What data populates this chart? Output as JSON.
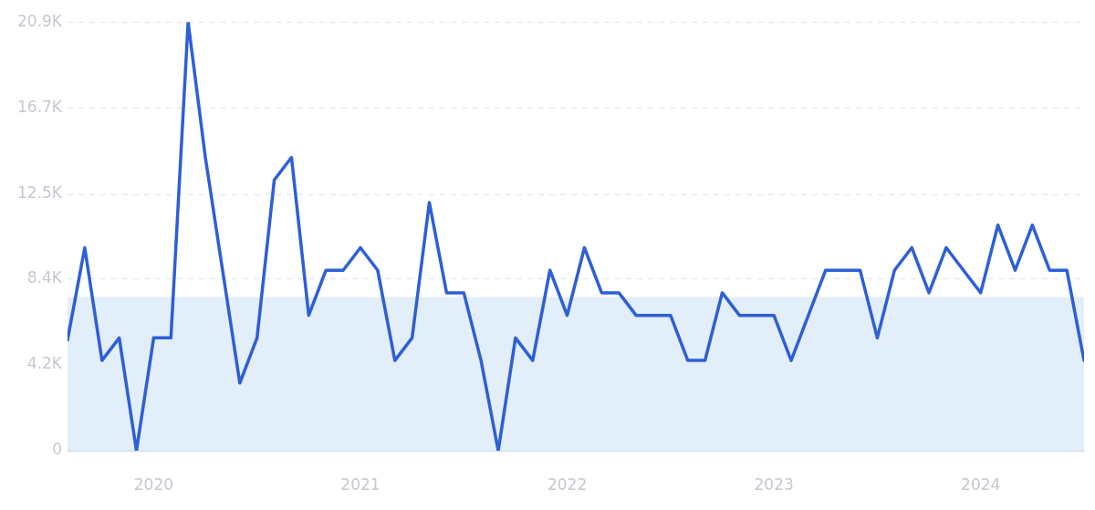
{
  "chart_data": {
    "type": "line",
    "x": [
      "2019-08",
      "2019-09",
      "2019-10",
      "2019-11",
      "2019-12",
      "2020-01",
      "2020-02",
      "2020-03",
      "2020-04",
      "2020-05",
      "2020-06",
      "2020-07",
      "2020-08",
      "2020-09",
      "2020-10",
      "2020-11",
      "2020-12",
      "2021-01",
      "2021-02",
      "2021-03",
      "2021-04",
      "2021-05",
      "2021-06",
      "2021-07",
      "2021-08",
      "2021-09",
      "2021-10",
      "2021-11",
      "2021-12",
      "2022-01",
      "2022-02",
      "2022-03",
      "2022-04",
      "2022-05",
      "2022-06",
      "2022-07",
      "2022-08",
      "2022-09",
      "2022-10",
      "2022-11",
      "2022-12",
      "2023-01",
      "2023-02",
      "2023-03",
      "2023-04",
      "2023-05",
      "2023-06",
      "2023-07",
      "2023-08",
      "2023-09",
      "2023-10",
      "2023-11",
      "2023-12",
      "2024-01",
      "2024-02",
      "2024-03",
      "2024-04",
      "2024-05",
      "2024-06",
      "2024-07"
    ],
    "series": [
      {
        "color": "#2d5fd6",
        "values": [
          5400,
          9900,
          4400,
          5500,
          0,
          5500,
          5500,
          20900,
          14300,
          8800,
          3300,
          5500,
          13200,
          14300,
          6600,
          8800,
          8800,
          9900,
          8800,
          4400,
          5500,
          12100,
          7700,
          7700,
          4400,
          0,
          5500,
          4400,
          8800,
          6600,
          9900,
          7700,
          7700,
          6600,
          6600,
          6600,
          4400,
          4400,
          7700,
          6600,
          6600,
          6600,
          4400,
          6600,
          8800,
          8800,
          8800,
          5500,
          8800,
          9900,
          7700,
          9900,
          8800,
          7700,
          11000,
          8800,
          11000,
          8800,
          8800,
          4400
        ]
      }
    ],
    "xlim": [
      "2019-08",
      "2024-07"
    ],
    "xticks": [
      {
        "value": "2020-01",
        "label": "2020"
      },
      {
        "value": "2021-01",
        "label": "2021"
      },
      {
        "value": "2022-01",
        "label": "2022"
      },
      {
        "value": "2023-01",
        "label": "2023"
      },
      {
        "value": "2024-01",
        "label": "2024"
      }
    ],
    "ylim": [
      0,
      20900
    ],
    "yticks": [
      0,
      {
        "value": 4200,
        "label": "4.2K"
      },
      {
        "value": 8400,
        "label": "8.4K"
      },
      {
        "value": 12500,
        "label": "12.5K"
      },
      {
        "value": 16700,
        "label": "16.7K"
      },
      {
        "value": 20900,
        "label": "20.9K"
      }
    ],
    "bands": [
      {
        "axis": "y",
        "from": 0,
        "to": 7500,
        "color": "#e3eefb"
      }
    ],
    "grid": "y",
    "marker": "none",
    "line_style": "solid",
    "legend": false
  }
}
